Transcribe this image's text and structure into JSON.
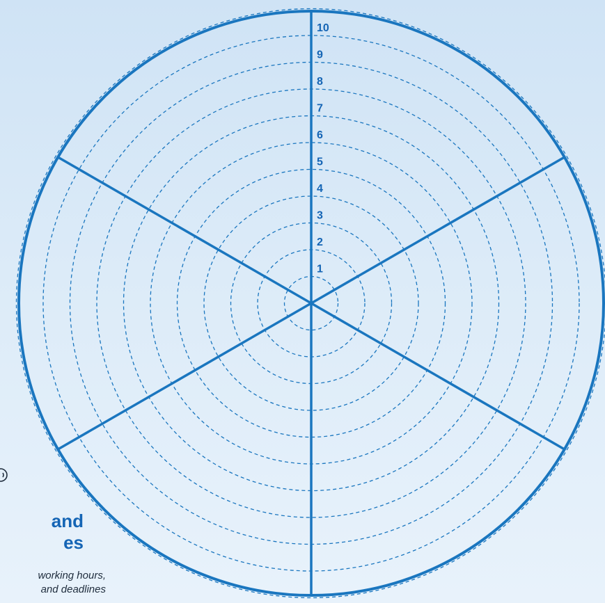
{
  "wheel": {
    "segments": 6,
    "scale_labels": [
      "1",
      "2",
      "3",
      "4",
      "5",
      "6",
      "7",
      "8",
      "9",
      "10"
    ]
  },
  "side_panel": {
    "heading_line1": "and",
    "heading_line2": "es",
    "note_line1": "working hours,",
    "note_line2": "and deadlines"
  },
  "colors": {
    "background": "#d6e7f7",
    "wheel_line": "#1a76bf",
    "label": "#1565b5",
    "note_text": "#1f2d3d"
  },
  "icons": {
    "partial_icon": "smiley-icon"
  }
}
